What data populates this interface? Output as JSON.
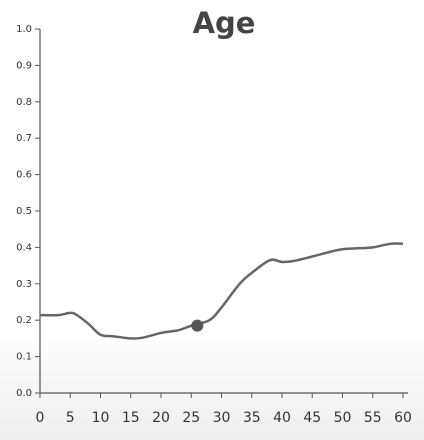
{
  "chart_data": {
    "type": "line",
    "title": "Age",
    "x": [
      0,
      3,
      5,
      6,
      8,
      10,
      12,
      15,
      17,
      20,
      23,
      25,
      28,
      30,
      33,
      35,
      38,
      40,
      42,
      45,
      48,
      50,
      53,
      55,
      58,
      60
    ],
    "series": [
      {
        "color": "#666666",
        "values": [
          0.214,
          0.214,
          0.22,
          0.215,
          0.19,
          0.16,
          0.156,
          0.15,
          0.152,
          0.165,
          0.173,
          0.185,
          0.2,
          0.235,
          0.3,
          0.33,
          0.365,
          0.36,
          0.363,
          0.375,
          0.388,
          0.395,
          0.398,
          0.4,
          0.41,
          0.41
        ]
      }
    ],
    "marker": {
      "x": 26,
      "y": 0.185,
      "color": "#555555"
    },
    "xlim": [
      0,
      60
    ],
    "xticks": [
      0,
      5,
      10,
      15,
      20,
      25,
      30,
      35,
      40,
      45,
      50,
      55,
      60
    ],
    "ylim": [
      0,
      1
    ],
    "yticks": [
      {
        "value": 0,
        "label": "0.0"
      },
      0.1,
      0.2,
      0.3,
      0.4,
      0.5,
      0.6,
      0.7,
      0.8,
      0.9,
      {
        "value": 1,
        "label": "1.0"
      }
    ]
  }
}
